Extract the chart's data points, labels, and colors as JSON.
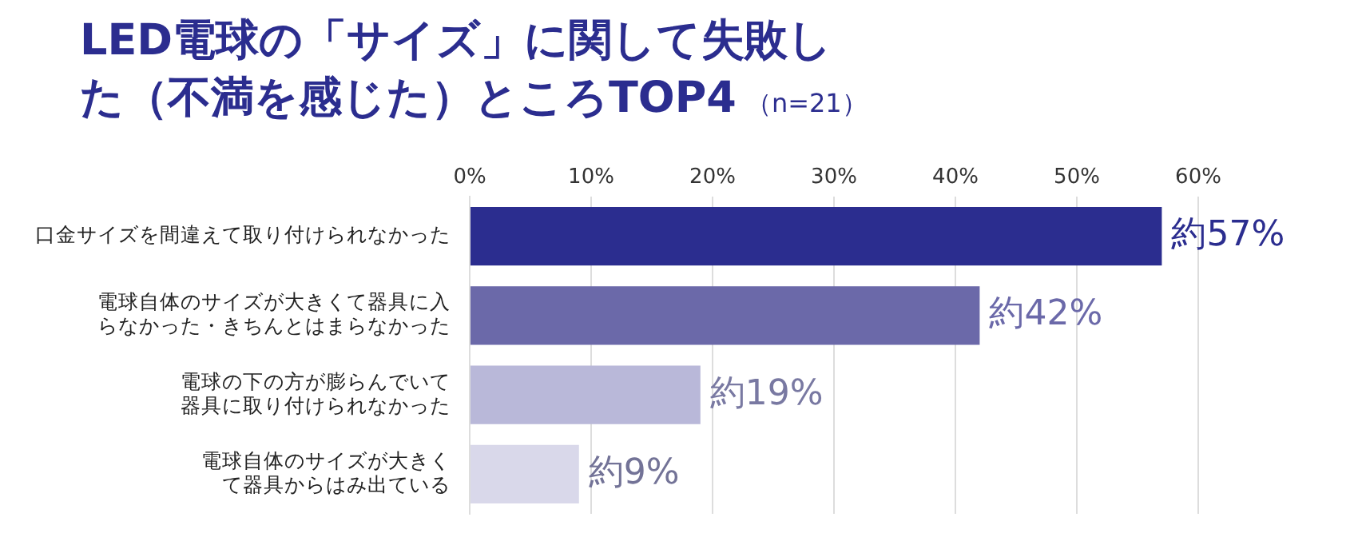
{
  "chart_data": {
    "type": "bar",
    "orientation": "horizontal",
    "title": "LED電球の「サイズ」に関して失敗した（不満を感じた）ところTOP4",
    "subtitle": "（n=21）",
    "categories": [
      "口金サイズを間違えて取り付けられなかった",
      "電球自体のサイズが大きくて器具に入らなかった・きちんとはまらなかった",
      "電球の下の方が膨らんでいて器具に取り付けられなかった",
      "電球自体のサイズが大きくて器具からはみ出ている"
    ],
    "values": [
      57,
      42,
      19,
      9
    ],
    "colors": [
      "#2b2d8f",
      "#6b69a9",
      "#b9b8d9",
      "#d9d8ea"
    ],
    "value_labels": [
      "約57%",
      "約42%",
      "約19%",
      "約9%"
    ],
    "xlim": [
      0,
      60
    ],
    "xticks": [
      {
        "value": 0,
        "label": "0%"
      },
      {
        "value": 10,
        "label": "10%"
      },
      {
        "value": 20,
        "label": "20%"
      },
      {
        "value": 30,
        "label": "30%"
      },
      {
        "value": 40,
        "label": "40%"
      },
      {
        "value": 50,
        "label": "50%"
      },
      {
        "value": 60,
        "label": "60%"
      }
    ],
    "grid": "x",
    "legend": false
  }
}
